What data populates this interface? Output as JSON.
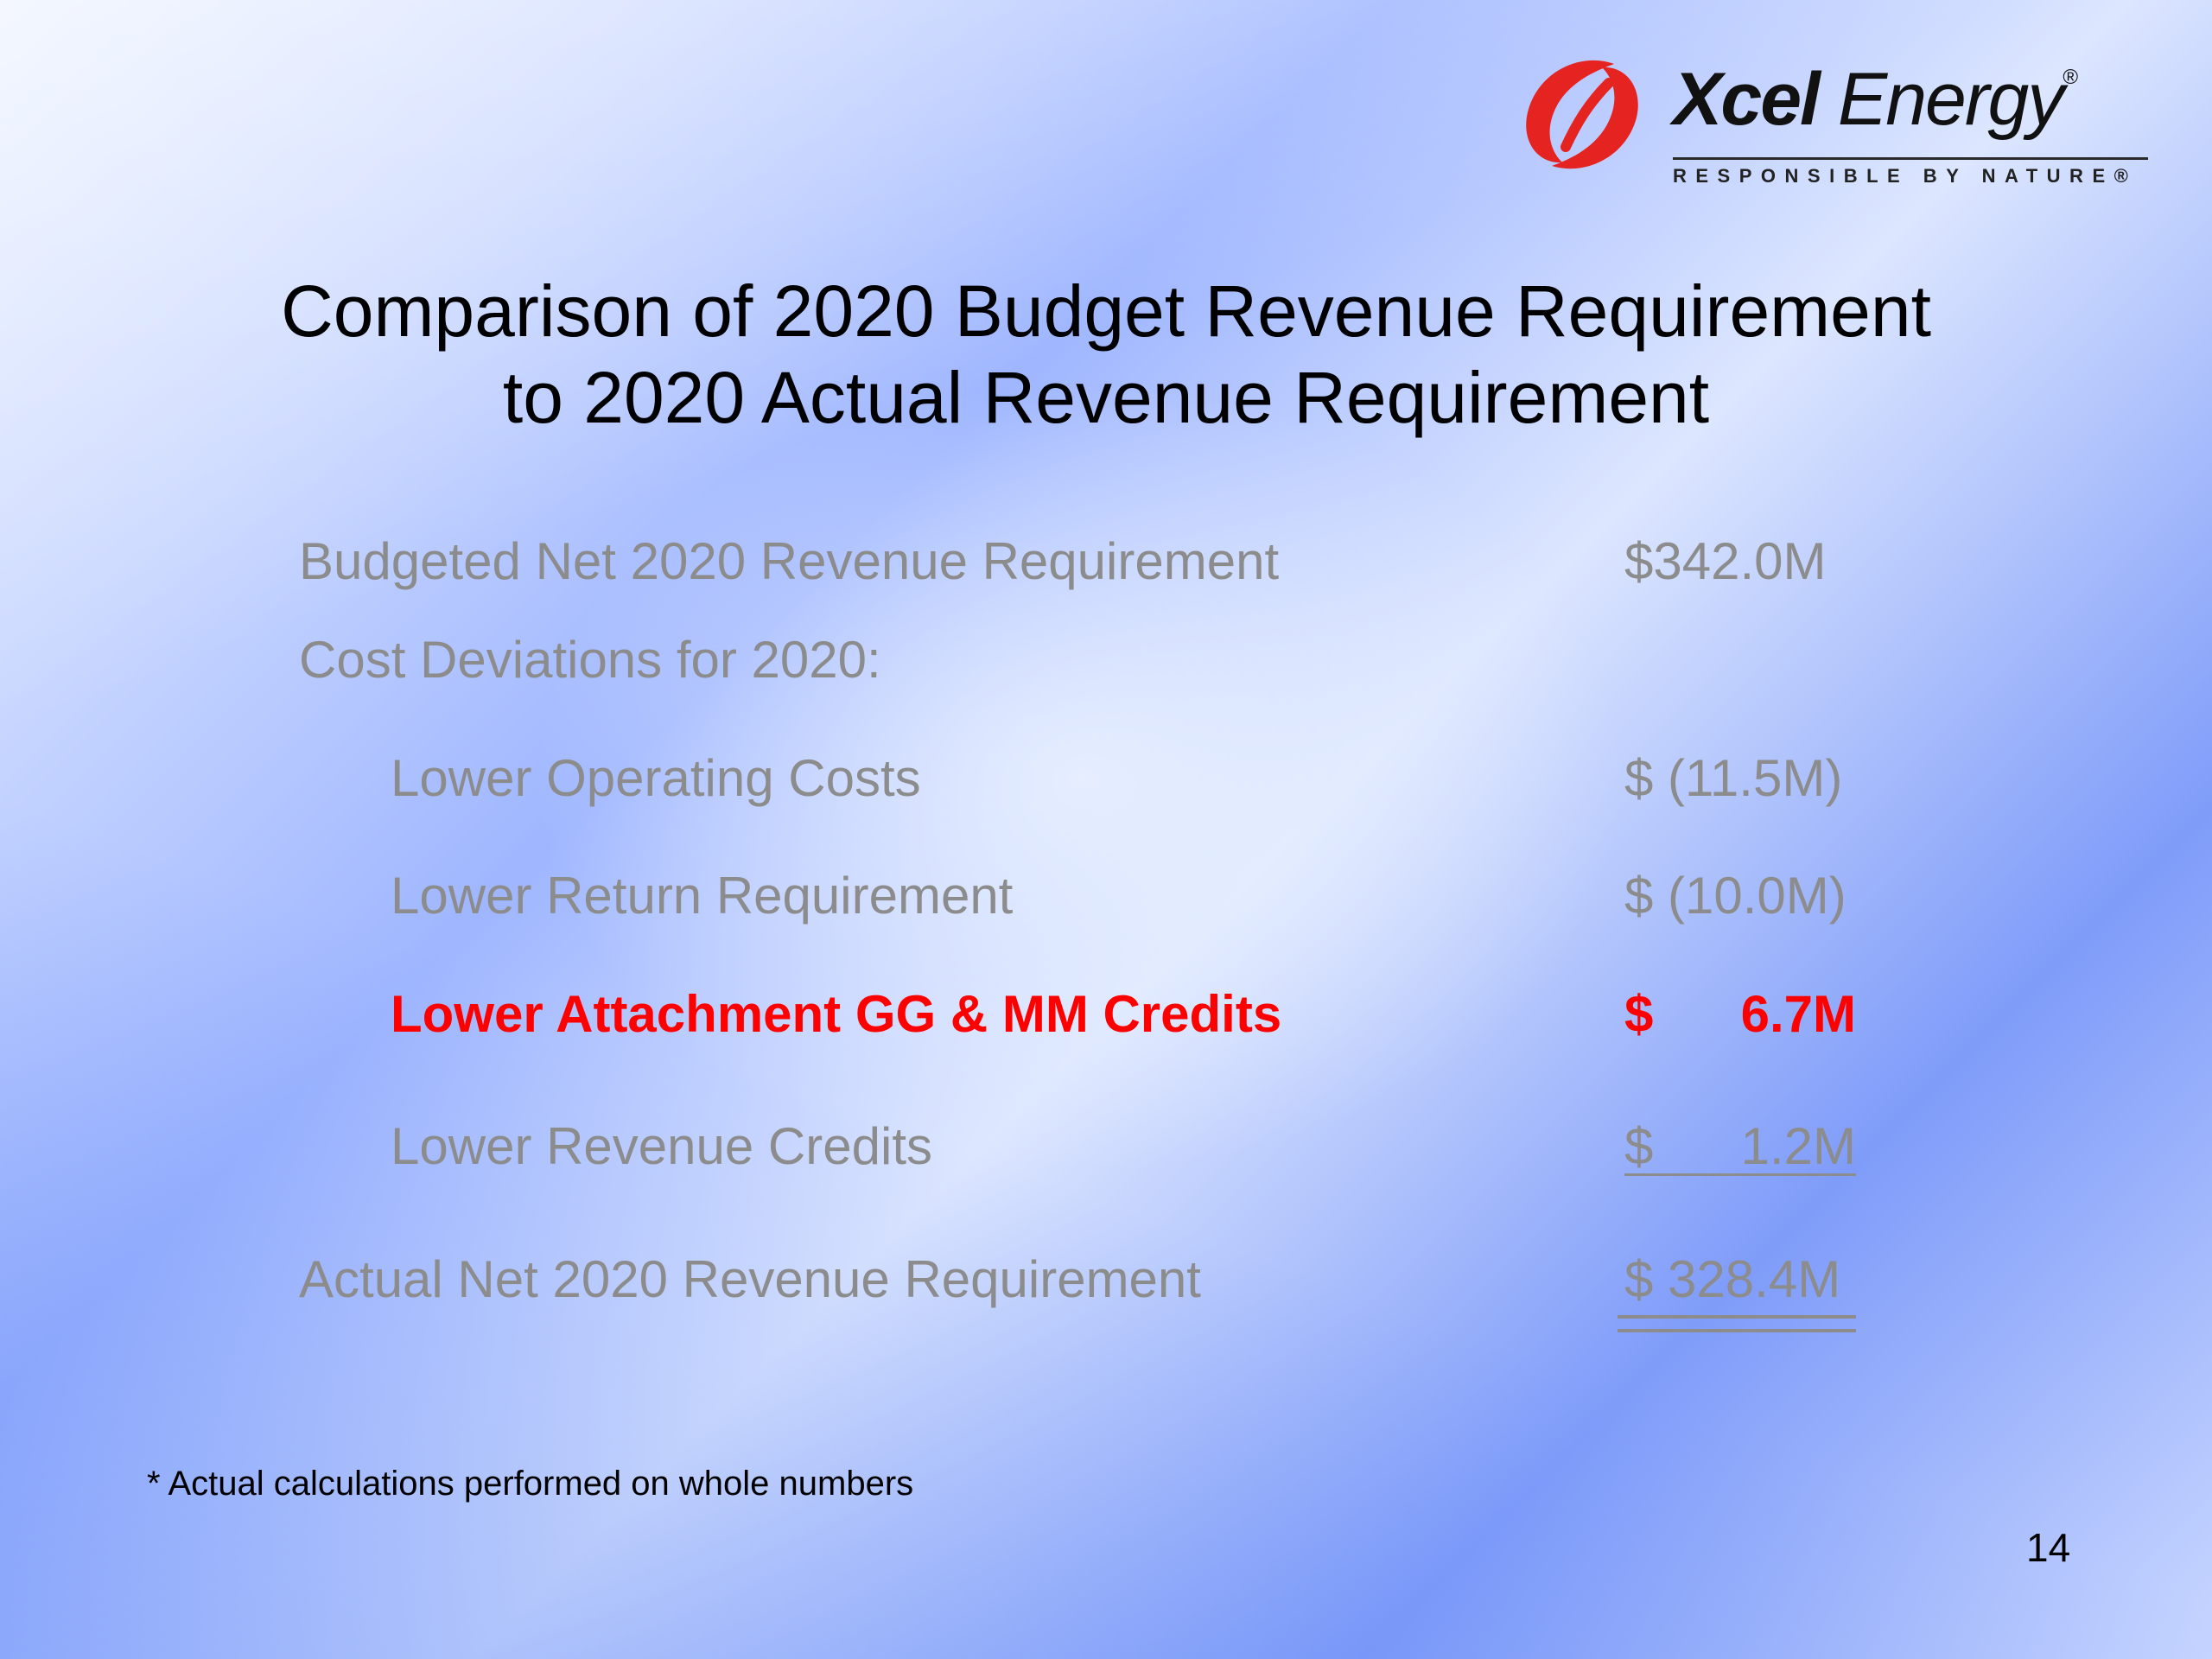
{
  "logo": {
    "brand_bold": "Xcel",
    "brand_regular": "Energy",
    "registered_mark": "®",
    "tagline": "RESPONSIBLE BY NATURE®",
    "brand_color": "#e52421",
    "mark_icon": "xcel-swirl-icon"
  },
  "title": {
    "line1": "Comparison of 2020 Budget Revenue Requirement",
    "line2": "to 2020 Actual Revenue Requirement"
  },
  "rows": {
    "budgeted": {
      "label": "Budgeted Net 2020 Revenue Requirement",
      "value": "$342.0M"
    },
    "deviations_header": {
      "label": "Cost Deviations for 2020:"
    },
    "operating": {
      "label": "Lower Operating Costs",
      "value": "$ (11.5M)"
    },
    "return": {
      "label": "Lower Return Requirement",
      "value": "$ (10.0M)"
    },
    "attachment": {
      "label": "Lower Attachment GG & MM Credits",
      "currency": "$",
      "amount": "6.7M"
    },
    "revenue_credits": {
      "label": "Lower Revenue Credits",
      "currency": "$",
      "amount": "1.2M"
    },
    "actual": {
      "label": "Actual Net 2020 Revenue Requirement",
      "value": "$ 328.4M"
    }
  },
  "colors": {
    "text_gray": "#8c8c8c",
    "highlight_red": "#ff0000"
  },
  "footnote": "* Actual calculations performed on whole numbers",
  "page_number": "14"
}
